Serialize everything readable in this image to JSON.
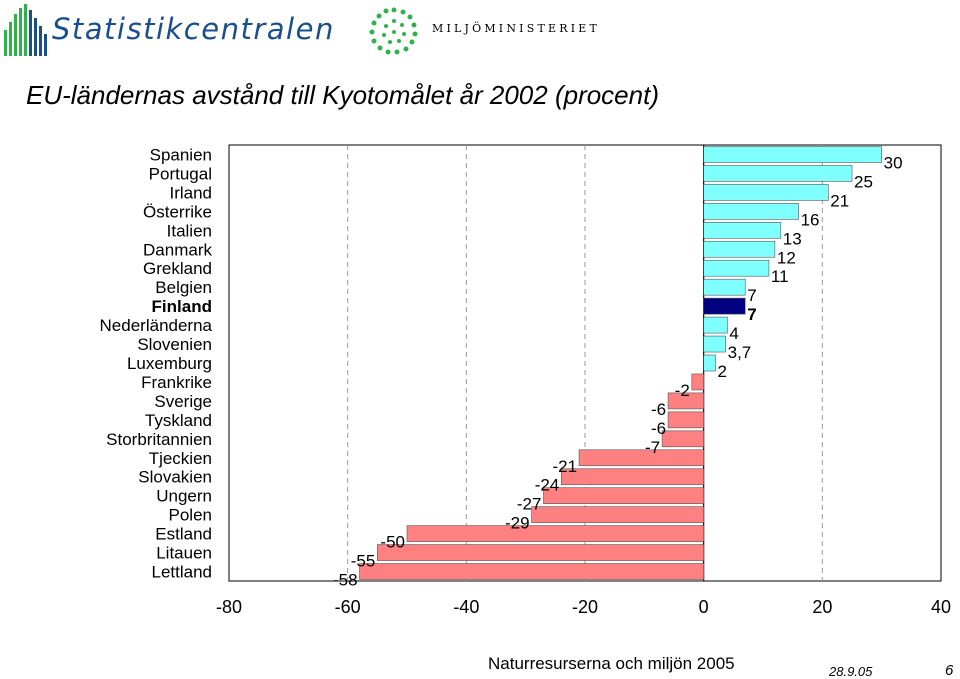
{
  "header": {
    "left_logo_icon": "statistikcentralen-logo-icon",
    "left_name": "Statistikcentralen",
    "right_logo_icon": "miljoministeriet-logo-icon",
    "right_name": "MILJÖMINISTERIET"
  },
  "colors": {
    "positive": "#80ffff",
    "negative": "#ff8080",
    "highlight": "#000080",
    "grid": "#999999",
    "brand": "#1a4f8f",
    "logo_green": "#2db34a"
  },
  "chart_data": {
    "type": "bar",
    "orientation": "horizontal",
    "title": "EU-ländernas avstånd till Kyotomålet år 2002 (procent)",
    "categories": [
      "Spanien",
      "Portugal",
      "Irland",
      "Österrike",
      "Italien",
      "Danmark",
      "Grekland",
      "Belgien",
      "Finland",
      "Nederländerna",
      "Slovenien",
      "Luxemburg",
      "Frankrike",
      "Sverige",
      "Tyskland",
      "Storbritannien",
      "Tjeckien",
      "Slovakien",
      "Ungern",
      "Polen",
      "Estland",
      "Litauen",
      "Lettland"
    ],
    "values": [
      30,
      25,
      21,
      16,
      13,
      12,
      11,
      7,
      7,
      4,
      3.7,
      2,
      -2,
      -6,
      -6,
      -7,
      -21,
      -24,
      -27,
      -29,
      -50,
      -55,
      -58
    ],
    "value_labels": [
      "30",
      "25",
      "21",
      "16",
      "13",
      "12",
      "11",
      "7",
      "7",
      "4",
      "3,7",
      "2",
      "-2",
      "-6",
      "-6",
      "-7",
      "-21",
      "-24",
      "-27",
      "-29",
      "-50",
      "-55",
      "-58"
    ],
    "highlighted_category": "Finland",
    "xlim": [
      -80,
      40
    ],
    "xticks": [
      "-80",
      "-60",
      "-40",
      "-20",
      "0",
      "20",
      "40"
    ],
    "xtick_values": [
      -80,
      -60,
      -40,
      -20,
      0,
      20,
      40
    ],
    "grid": "vertical dashed",
    "xlabel": "",
    "ylabel": ""
  },
  "footer": {
    "source": "Naturresurserna och miljön 2005",
    "date": "28.9.05",
    "page": "6"
  }
}
